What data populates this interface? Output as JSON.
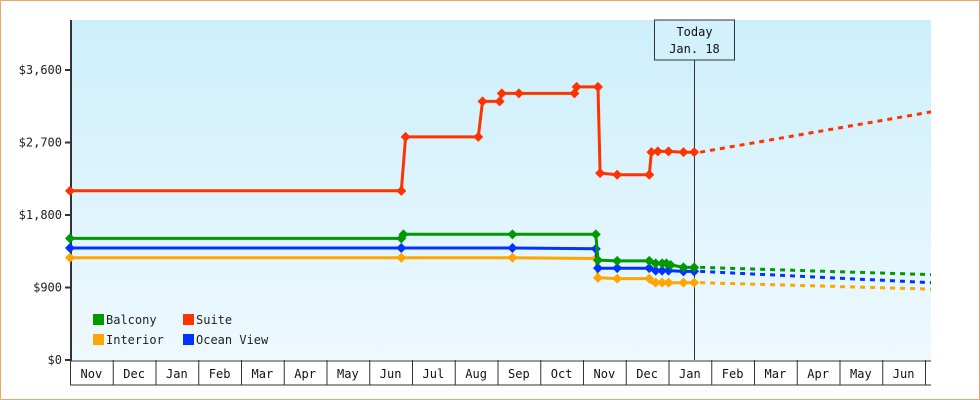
{
  "chart_data": {
    "type": "line",
    "title": "",
    "xlabel": "",
    "ylabel": "",
    "ylim": [
      0,
      4200
    ],
    "yticks": [
      0,
      900,
      1800,
      2700,
      3600
    ],
    "ytick_labels": [
      "$0",
      "$900",
      "$1,800",
      "$2,700",
      "$3,600"
    ],
    "grid": false,
    "background": "light-blue gradient",
    "x_months": [
      "Nov",
      "Dec",
      "Jan",
      "Feb",
      "Mar",
      "Apr",
      "May",
      "Jun",
      "Jul",
      "Aug",
      "Sep",
      "Oct",
      "Nov",
      "Dec",
      "Jan",
      "Feb",
      "Mar",
      "Apr",
      "May",
      "Jun"
    ],
    "legend": [
      {
        "name": "Balcony",
        "color": "#009900"
      },
      {
        "name": "Suite",
        "color": "#ff3300"
      },
      {
        "name": "Interior",
        "color": "#ffa500"
      },
      {
        "name": "Ocean View",
        "color": "#0033ff"
      }
    ],
    "legend_position": "lower-left",
    "annotation": {
      "line1": "Today",
      "line2": "Jan. 18",
      "month_index": 14.6
    },
    "series": [
      {
        "name": "Suite",
        "color": "#ff3300",
        "step_points": [
          [
            0.0,
            2100
          ],
          [
            7.75,
            2100
          ],
          [
            7.85,
            2770
          ],
          [
            9.55,
            2770
          ],
          [
            9.65,
            3210
          ],
          [
            10.05,
            3210
          ],
          [
            10.1,
            3310
          ],
          [
            10.5,
            3310
          ],
          [
            11.8,
            3310
          ],
          [
            11.85,
            3390
          ],
          [
            12.35,
            3390
          ],
          [
            12.4,
            2320
          ],
          [
            12.8,
            2300
          ],
          [
            13.55,
            2300
          ],
          [
            13.6,
            2580
          ],
          [
            13.75,
            2590
          ],
          [
            14.0,
            2590
          ],
          [
            14.35,
            2580
          ],
          [
            14.6,
            2580
          ]
        ],
        "projection": [
          [
            14.6,
            2580
          ],
          [
            20.0,
            3080
          ]
        ]
      },
      {
        "name": "Balcony",
        "color": "#009900",
        "step_points": [
          [
            0.0,
            1510
          ],
          [
            7.75,
            1510
          ],
          [
            7.8,
            1560
          ],
          [
            10.35,
            1560
          ],
          [
            12.3,
            1560
          ],
          [
            12.35,
            1240
          ],
          [
            12.8,
            1230
          ],
          [
            13.55,
            1230
          ],
          [
            13.7,
            1200
          ],
          [
            13.95,
            1200
          ],
          [
            14.05,
            1180
          ],
          [
            14.35,
            1150
          ],
          [
            14.6,
            1150
          ]
        ],
        "projection": [
          [
            14.6,
            1150
          ],
          [
            20.0,
            1060
          ]
        ]
      },
      {
        "name": "Ocean View",
        "color": "#0033ff",
        "step_points": [
          [
            0.0,
            1390
          ],
          [
            7.75,
            1390
          ],
          [
            10.35,
            1390
          ],
          [
            12.3,
            1380
          ],
          [
            12.35,
            1140
          ],
          [
            12.8,
            1140
          ],
          [
            13.55,
            1140
          ],
          [
            13.7,
            1110
          ],
          [
            14.0,
            1110
          ],
          [
            14.35,
            1100
          ],
          [
            14.6,
            1100
          ]
        ],
        "projection": [
          [
            14.6,
            1100
          ],
          [
            20.0,
            960
          ]
        ]
      },
      {
        "name": "Interior",
        "color": "#ffa500",
        "step_points": [
          [
            0.0,
            1270
          ],
          [
            7.75,
            1270
          ],
          [
            10.35,
            1270
          ],
          [
            12.3,
            1260
          ],
          [
            12.35,
            1020
          ],
          [
            12.8,
            1010
          ],
          [
            13.55,
            1010
          ],
          [
            13.6,
            960
          ],
          [
            13.75,
            960
          ],
          [
            14.0,
            960
          ],
          [
            14.35,
            960
          ],
          [
            14.6,
            960
          ]
        ],
        "projection": [
          [
            14.6,
            960
          ],
          [
            20.0,
            880
          ]
        ]
      }
    ],
    "markers": {
      "Suite": [
        0.0,
        7.75,
        7.85,
        9.55,
        9.65,
        10.05,
        10.1,
        10.5,
        11.8,
        11.85,
        12.35,
        12.4,
        12.8,
        13.55,
        13.6,
        13.75,
        14.0,
        14.35,
        14.6
      ],
      "Balcony": [
        0.0,
        7.75,
        7.8,
        10.35,
        12.3,
        12.35,
        12.8,
        13.55,
        13.7,
        13.85,
        13.95,
        14.05,
        14.35,
        14.6
      ],
      "Ocean View": [
        0.0,
        7.75,
        10.35,
        12.3,
        12.35,
        12.8,
        13.55,
        13.7,
        13.85,
        14.0,
        14.35,
        14.6
      ],
      "Interior": [
        0.0,
        7.75,
        10.35,
        12.3,
        12.35,
        12.8,
        13.55,
        13.7,
        13.85,
        14.0,
        14.35,
        14.6
      ]
    }
  }
}
